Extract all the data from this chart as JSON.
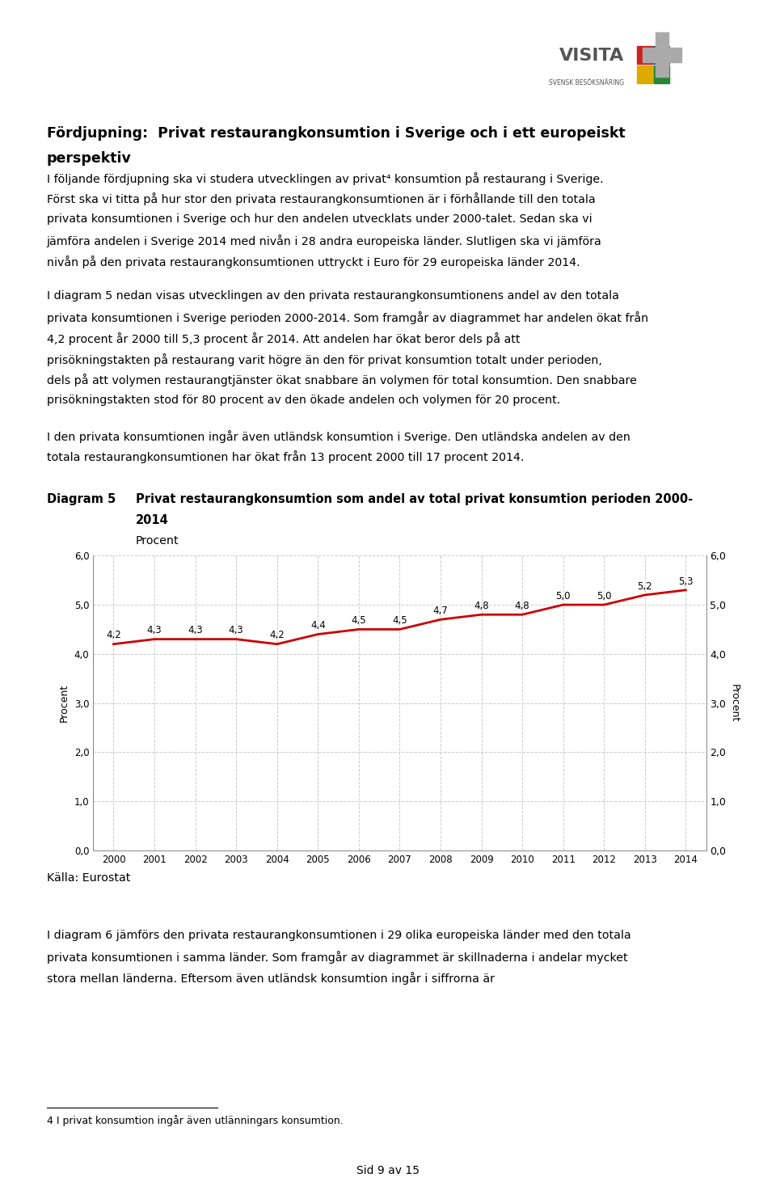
{
  "title_heading": "Fördjupning:  Privat restaurangkonsumtion i Sverige och i ett europeiskt perspektiv",
  "para1": "I följande fördjupning ska vi studera utvecklingen av privat⁴ konsumtion på restaurang i Sverige. Först ska vi titta på hur stor den privata restaurangkonsumtionen är i förhållande till den totala privata konsumtionen i Sverige och hur den andelen utvecklats under 2000-talet. Sedan ska vi jämföra andelen i Sverige 2014 med nivån i 28 andra europeiska länder. Slutligen ska vi jämföra nivån på den privata restaurangkonsumtionen uttryckt i Euro för 29 europeiska länder 2014.",
  "para2": "I diagram 5 nedan visas utvecklingen av den privata restaurangkonsumtionens andel av den totala privata konsumtionen i Sverige perioden 2000-2014. Som framgår av diagrammet har andelen ökat från 4,2 procent år 2000 till 5,3 procent år 2014. Att andelen har ökat beror dels på att prisökningstakten på restaurang varit högre än den för privat konsumtion totalt under perioden, dels på att volymen restaurangtjänster ökat snabbare än volymen för total konsumtion. Den snabbare prisökningstakten stod för 80 procent av den ökade andelen och volymen för 20 procent.",
  "para3": "I den privata konsumtionen ingår även utländsk konsumtion i Sverige. Den utländska andelen av den totala restaurangkonsumtionen har ökat från 13 procent 2000 till 17 procent 2014.",
  "diagram_label": "Diagram 5",
  "diagram_title": "Privat restaurangkonsumtion som andel av total privat konsumtion perioden 2000-\n2014",
  "diagram_subtitle": "Procent",
  "years": [
    2000,
    2001,
    2002,
    2003,
    2004,
    2005,
    2006,
    2007,
    2008,
    2009,
    2010,
    2011,
    2012,
    2013,
    2014
  ],
  "values": [
    4.2,
    4.3,
    4.3,
    4.3,
    4.2,
    4.4,
    4.5,
    4.5,
    4.7,
    4.8,
    4.8,
    5.0,
    5.0,
    5.2,
    5.3
  ],
  "line_color": "#cc0000",
  "ylim": [
    0.0,
    6.0
  ],
  "yticks": [
    0.0,
    1.0,
    2.0,
    3.0,
    4.0,
    5.0,
    6.0
  ],
  "ytick_labels": [
    "0,0",
    "1,0",
    "2,0",
    "3,0",
    "4,0",
    "5,0",
    "6,0"
  ],
  "ylabel": "Procent",
  "source": "Källa: Eurostat",
  "para4": "I diagram 6 jämförs den privata restaurangkonsumtionen i 29 olika europeiska länder med den totala privata konsumtionen i samma länder. Som framgår av diagrammet är skillnaderna i andelar mycket stora mellan länderna. Eftersom även utländsk konsumtion ingår i siffrorna är",
  "footnote_line": "4 I privat konsumtion ingår även utlänningars konsumtion.",
  "page_number": "Sid 9 av 15",
  "logo_text": "VISITA\nSVENSK BESÖKSNÄRING",
  "background_color": "#ffffff"
}
